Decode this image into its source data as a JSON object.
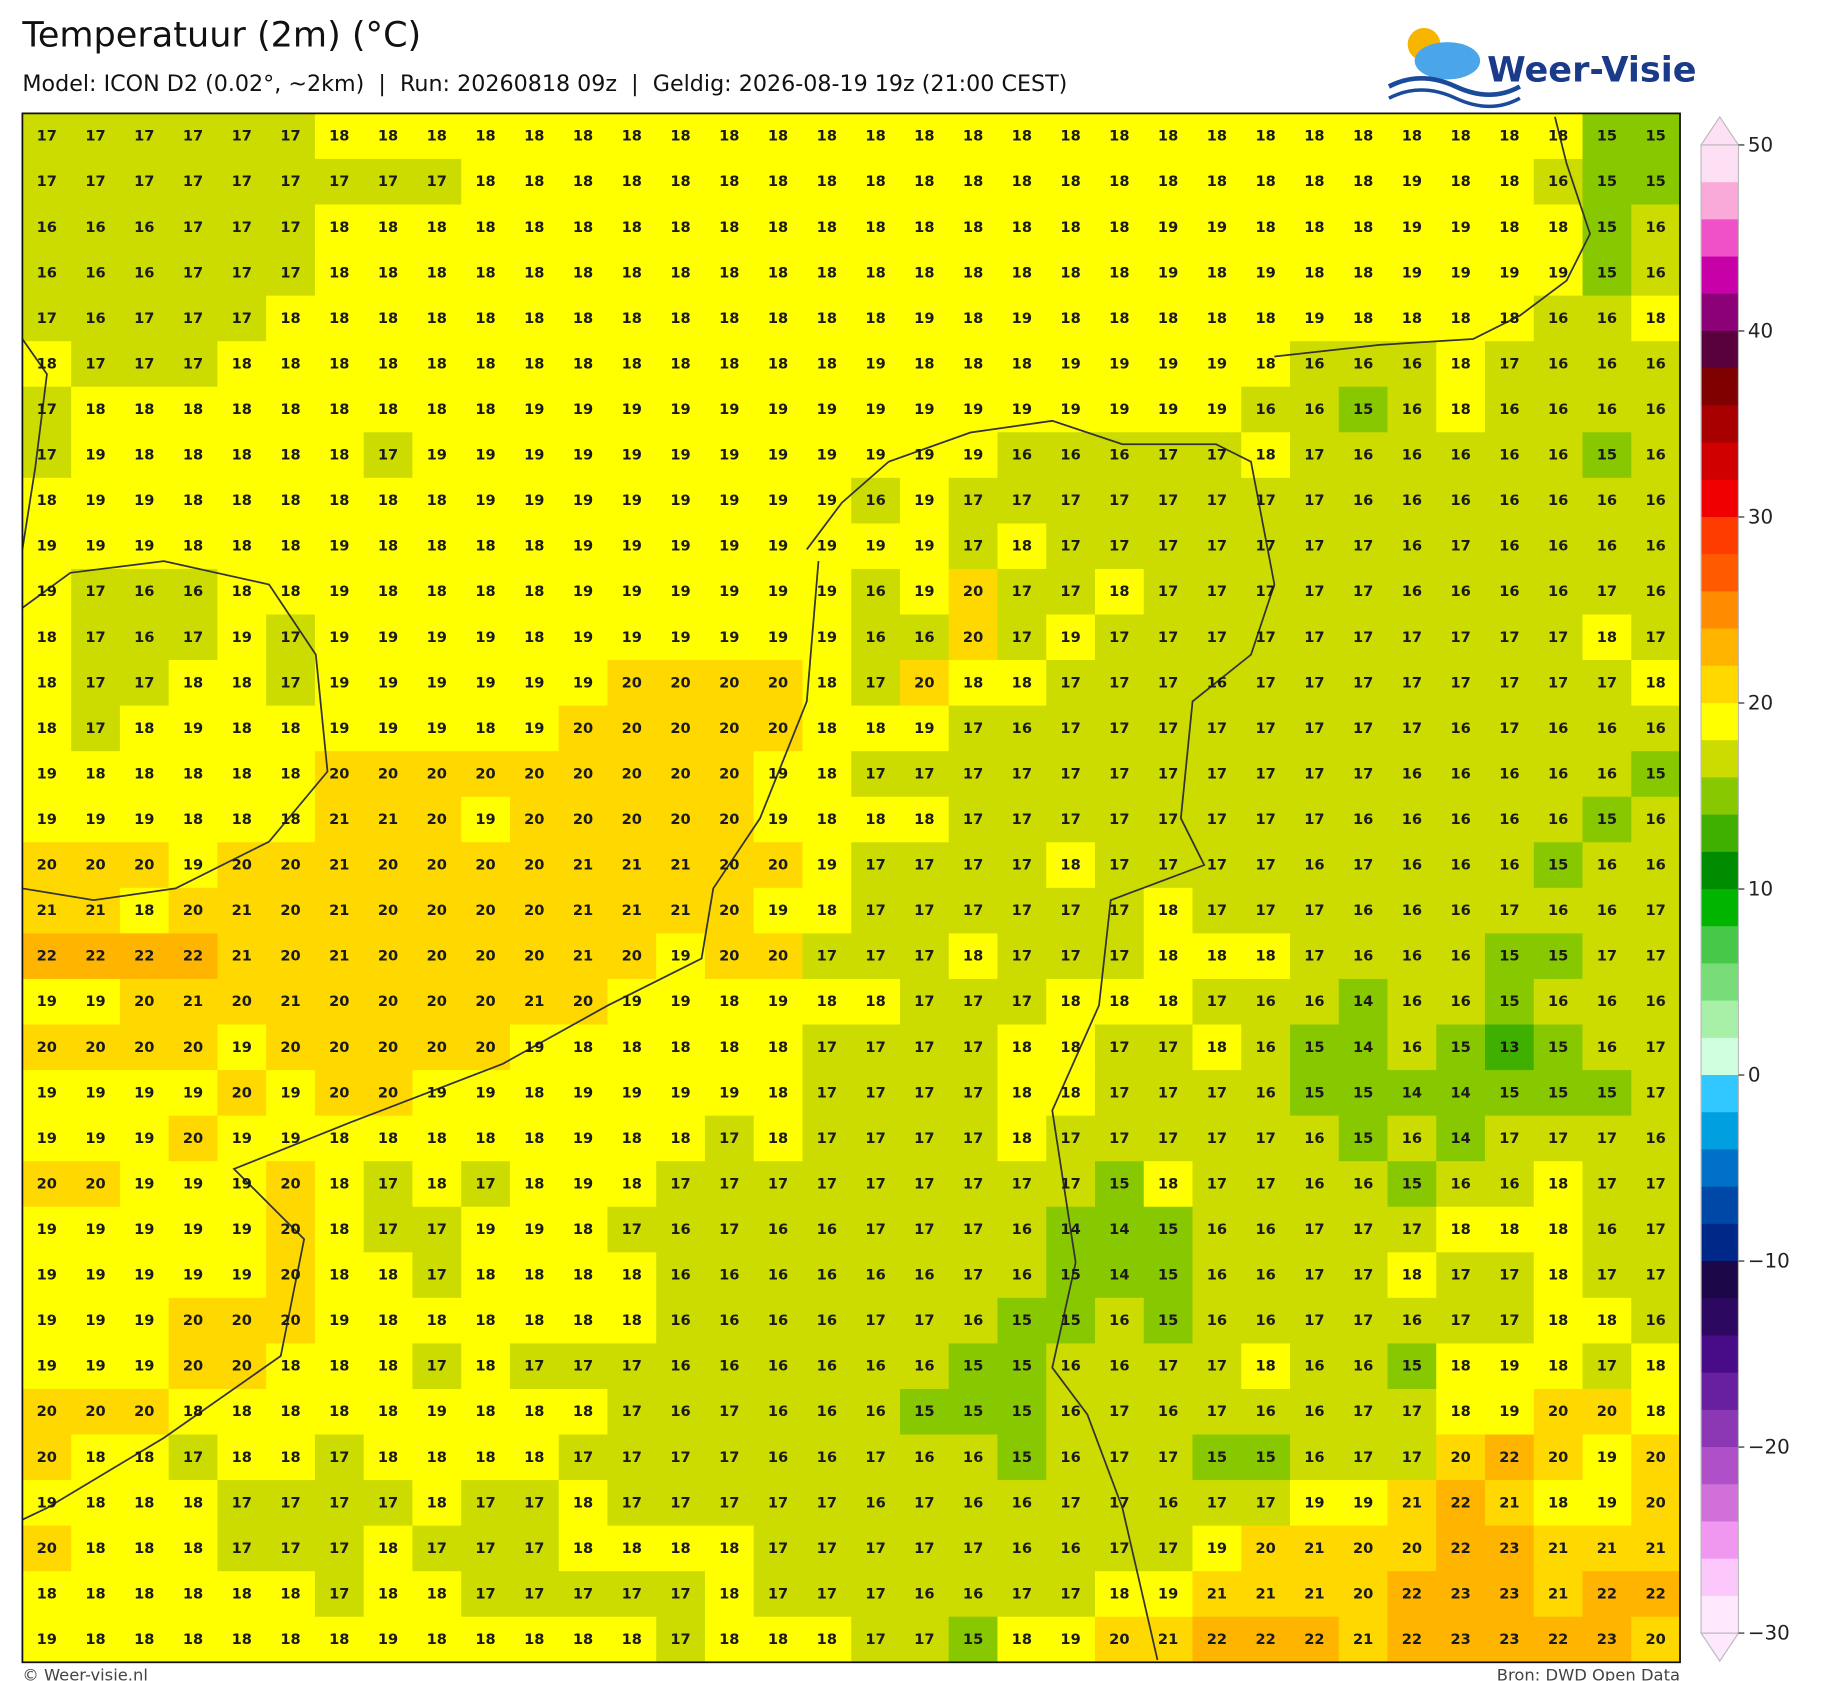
{
  "header": {
    "title": "Temperatuur (2m) (°C)",
    "subtitle": "Model: ICON D2 (0.02°, ~2km)  |  Run: 20260818 09z  |  Geldig: 2026-08-19 19z (21:00 CEST)"
  },
  "logo": {
    "text": "Weer-Visie"
  },
  "map": {
    "rows": [
      [
        17,
        17,
        17,
        17,
        17,
        17,
        18,
        18,
        18,
        18,
        18,
        18,
        18,
        18,
        18,
        18,
        18,
        18,
        18,
        18,
        18,
        18,
        18,
        18,
        18,
        18,
        18,
        18,
        18,
        18,
        18,
        18,
        15,
        15
      ],
      [
        17,
        17,
        17,
        17,
        17,
        17,
        17,
        17,
        17,
        18,
        18,
        18,
        18,
        18,
        18,
        18,
        18,
        18,
        18,
        18,
        18,
        18,
        18,
        18,
        18,
        18,
        18,
        18,
        19,
        18,
        18,
        16,
        15,
        15
      ],
      [
        16,
        16,
        16,
        17,
        17,
        17,
        18,
        18,
        18,
        18,
        18,
        18,
        18,
        18,
        18,
        18,
        18,
        18,
        18,
        18,
        18,
        18,
        18,
        19,
        19,
        18,
        18,
        18,
        19,
        19,
        18,
        18,
        15,
        16
      ],
      [
        16,
        16,
        16,
        17,
        17,
        17,
        18,
        18,
        18,
        18,
        18,
        18,
        18,
        18,
        18,
        18,
        18,
        18,
        18,
        18,
        18,
        18,
        18,
        19,
        18,
        19,
        18,
        18,
        19,
        19,
        19,
        19,
        15,
        16
      ],
      [
        17,
        16,
        17,
        17,
        17,
        18,
        18,
        18,
        18,
        18,
        18,
        18,
        18,
        18,
        18,
        18,
        18,
        18,
        19,
        18,
        19,
        18,
        18,
        18,
        18,
        18,
        19,
        18,
        18,
        18,
        18,
        16,
        16,
        18
      ],
      [
        18,
        17,
        17,
        17,
        18,
        18,
        18,
        18,
        18,
        18,
        18,
        18,
        18,
        18,
        18,
        18,
        18,
        19,
        18,
        18,
        18,
        19,
        19,
        19,
        19,
        18,
        16,
        16,
        16,
        18,
        17,
        16,
        16,
        16
      ],
      [
        17,
        18,
        18,
        18,
        18,
        18,
        18,
        18,
        18,
        18,
        19,
        19,
        19,
        19,
        19,
        19,
        19,
        19,
        19,
        19,
        19,
        19,
        19,
        19,
        19,
        16,
        16,
        15,
        16,
        18,
        16,
        16,
        16,
        16
      ],
      [
        17,
        19,
        18,
        18,
        18,
        18,
        18,
        17,
        19,
        19,
        19,
        19,
        19,
        19,
        19,
        19,
        19,
        19,
        19,
        19,
        16,
        16,
        16,
        17,
        17,
        18,
        17,
        16,
        16,
        16,
        16,
        16,
        15,
        16
      ],
      [
        18,
        19,
        19,
        18,
        18,
        18,
        18,
        18,
        18,
        19,
        19,
        19,
        19,
        19,
        19,
        19,
        19,
        16,
        19,
        17,
        17,
        17,
        17,
        17,
        17,
        17,
        17,
        16,
        16,
        16,
        16,
        16,
        16,
        16
      ],
      [
        19,
        19,
        19,
        18,
        18,
        18,
        19,
        18,
        18,
        18,
        18,
        19,
        19,
        19,
        19,
        19,
        19,
        19,
        19,
        17,
        18,
        17,
        17,
        17,
        17,
        17,
        17,
        17,
        16,
        17,
        16,
        16,
        16,
        16
      ],
      [
        19,
        17,
        16,
        16,
        18,
        18,
        19,
        18,
        18,
        18,
        18,
        19,
        19,
        19,
        19,
        19,
        19,
        16,
        19,
        20,
        17,
        17,
        18,
        17,
        17,
        17,
        17,
        17,
        16,
        16,
        16,
        16,
        17,
        16
      ],
      [
        18,
        17,
        16,
        17,
        19,
        17,
        19,
        19,
        19,
        19,
        18,
        19,
        19,
        19,
        19,
        19,
        19,
        16,
        16,
        20,
        17,
        19,
        17,
        17,
        17,
        17,
        17,
        17,
        17,
        17,
        17,
        17,
        18,
        17
      ],
      [
        18,
        17,
        17,
        18,
        18,
        17,
        19,
        19,
        19,
        19,
        19,
        19,
        20,
        20,
        20,
        20,
        18,
        17,
        20,
        18,
        18,
        17,
        17,
        17,
        16,
        17,
        17,
        17,
        17,
        17,
        17,
        17,
        17,
        18
      ],
      [
        18,
        17,
        18,
        19,
        18,
        18,
        19,
        19,
        19,
        18,
        19,
        20,
        20,
        20,
        20,
        20,
        18,
        18,
        19,
        17,
        16,
        17,
        17,
        17,
        17,
        17,
        17,
        17,
        17,
        16,
        17,
        16,
        16,
        16
      ],
      [
        19,
        18,
        18,
        18,
        18,
        18,
        20,
        20,
        20,
        20,
        20,
        20,
        20,
        20,
        20,
        19,
        18,
        17,
        17,
        17,
        17,
        17,
        17,
        17,
        17,
        17,
        17,
        17,
        16,
        16,
        16,
        16,
        16,
        15
      ],
      [
        19,
        19,
        19,
        18,
        18,
        18,
        21,
        21,
        20,
        19,
        20,
        20,
        20,
        20,
        20,
        19,
        18,
        18,
        18,
        17,
        17,
        17,
        17,
        17,
        17,
        17,
        17,
        16,
        16,
        16,
        16,
        16,
        15,
        16
      ],
      [
        20,
        20,
        20,
        19,
        20,
        20,
        21,
        20,
        20,
        20,
        20,
        21,
        21,
        21,
        20,
        20,
        19,
        17,
        17,
        17,
        17,
        18,
        17,
        17,
        17,
        17,
        16,
        17,
        16,
        16,
        16,
        15,
        16,
        16
      ],
      [
        21,
        21,
        18,
        20,
        21,
        20,
        21,
        20,
        20,
        20,
        20,
        21,
        21,
        21,
        20,
        19,
        18,
        17,
        17,
        17,
        17,
        17,
        17,
        18,
        17,
        17,
        17,
        16,
        16,
        16,
        17,
        16,
        16,
        17
      ],
      [
        22,
        22,
        22,
        22,
        21,
        20,
        21,
        20,
        20,
        20,
        20,
        21,
        20,
        19,
        20,
        20,
        17,
        17,
        17,
        18,
        17,
        17,
        17,
        18,
        18,
        18,
        17,
        16,
        16,
        16,
        15,
        15,
        17,
        17
      ],
      [
        19,
        19,
        20,
        21,
        20,
        21,
        20,
        20,
        20,
        20,
        21,
        20,
        19,
        19,
        18,
        19,
        18,
        18,
        17,
        17,
        17,
        18,
        18,
        18,
        17,
        16,
        16,
        14,
        16,
        16,
        15,
        16,
        16,
        16
      ],
      [
        20,
        20,
        20,
        20,
        19,
        20,
        20,
        20,
        20,
        20,
        19,
        18,
        18,
        18,
        18,
        18,
        17,
        17,
        17,
        17,
        18,
        18,
        17,
        17,
        18,
        16,
        15,
        14,
        16,
        15,
        13,
        15,
        16,
        17
      ],
      [
        19,
        19,
        19,
        19,
        20,
        19,
        20,
        20,
        19,
        19,
        18,
        19,
        19,
        19,
        19,
        18,
        17,
        17,
        17,
        17,
        18,
        18,
        17,
        17,
        17,
        16,
        15,
        15,
        14,
        14,
        15,
        15,
        15,
        17
      ],
      [
        19,
        19,
        19,
        20,
        19,
        19,
        18,
        18,
        18,
        18,
        18,
        19,
        18,
        18,
        17,
        18,
        17,
        17,
        17,
        17,
        18,
        17,
        17,
        17,
        17,
        17,
        16,
        15,
        16,
        14,
        17,
        17,
        17,
        16
      ],
      [
        20,
        20,
        19,
        19,
        19,
        20,
        18,
        17,
        18,
        17,
        18,
        19,
        18,
        17,
        17,
        17,
        17,
        17,
        17,
        17,
        17,
        17,
        15,
        18,
        17,
        17,
        16,
        16,
        15,
        16,
        16,
        18,
        17,
        17
      ],
      [
        19,
        19,
        19,
        19,
        19,
        20,
        18,
        17,
        17,
        19,
        19,
        18,
        17,
        16,
        17,
        16,
        16,
        17,
        17,
        17,
        16,
        14,
        14,
        15,
        16,
        16,
        17,
        17,
        17,
        18,
        18,
        18,
        16,
        17
      ],
      [
        19,
        19,
        19,
        19,
        19,
        20,
        18,
        18,
        17,
        18,
        18,
        18,
        18,
        16,
        16,
        16,
        16,
        16,
        16,
        17,
        16,
        15,
        14,
        15,
        16,
        16,
        17,
        17,
        18,
        17,
        17,
        18,
        17,
        17
      ],
      [
        19,
        19,
        19,
        20,
        20,
        20,
        19,
        18,
        18,
        18,
        18,
        18,
        18,
        16,
        16,
        16,
        16,
        17,
        17,
        16,
        15,
        15,
        16,
        15,
        16,
        16,
        17,
        17,
        16,
        17,
        17,
        18,
        18,
        16
      ],
      [
        19,
        19,
        19,
        20,
        20,
        18,
        18,
        18,
        17,
        18,
        17,
        17,
        17,
        16,
        16,
        16,
        16,
        16,
        16,
        15,
        15,
        16,
        16,
        17,
        17,
        18,
        16,
        16,
        15,
        18,
        19,
        18,
        17,
        18
      ],
      [
        20,
        20,
        20,
        18,
        18,
        18,
        18,
        18,
        19,
        18,
        18,
        18,
        17,
        16,
        17,
        16,
        16,
        16,
        15,
        15,
        15,
        16,
        17,
        16,
        17,
        16,
        16,
        17,
        17,
        18,
        19,
        20,
        20,
        18
      ],
      [
        20,
        18,
        18,
        17,
        18,
        18,
        17,
        18,
        18,
        18,
        18,
        17,
        17,
        17,
        17,
        16,
        16,
        17,
        16,
        16,
        15,
        16,
        17,
        17,
        15,
        15,
        16,
        17,
        17,
        20,
        22,
        20,
        19,
        20
      ],
      [
        19,
        18,
        18,
        18,
        17,
        17,
        17,
        17,
        18,
        17,
        17,
        18,
        17,
        17,
        17,
        17,
        17,
        16,
        17,
        16,
        16,
        17,
        17,
        16,
        17,
        17,
        19,
        19,
        21,
        22,
        21,
        18,
        19,
        20
      ],
      [
        20,
        18,
        18,
        18,
        17,
        17,
        17,
        18,
        17,
        17,
        17,
        18,
        18,
        18,
        18,
        17,
        17,
        17,
        17,
        17,
        16,
        16,
        17,
        17,
        19,
        20,
        21,
        20,
        20,
        22,
        23,
        21,
        21,
        21
      ],
      [
        18,
        18,
        18,
        18,
        18,
        18,
        17,
        18,
        18,
        17,
        17,
        17,
        17,
        17,
        18,
        17,
        17,
        17,
        16,
        16,
        17,
        17,
        18,
        19,
        21,
        21,
        21,
        20,
        22,
        23,
        23,
        21,
        22,
        22
      ],
      [
        19,
        18,
        18,
        18,
        18,
        18,
        18,
        19,
        18,
        18,
        18,
        18,
        18,
        17,
        18,
        18,
        18,
        17,
        17,
        15,
        18,
        19,
        20,
        21,
        22,
        22,
        22,
        21,
        22,
        23,
        23,
        22,
        23,
        20
      ]
    ]
  },
  "colorbar": {
    "range": [
      -30,
      50
    ],
    "colors": [
      "#fde0f4",
      "#f9aad8",
      "#f050c8",
      "#c800a8",
      "#8c0078",
      "#58003c",
      "#800000",
      "#a80000",
      "#d00000",
      "#f00000",
      "#ff3c00",
      "#ff5a00",
      "#ff8c00",
      "#ffb400",
      "#ffd800",
      "#ffff00",
      "#ccdc00",
      "#88c800",
      "#40b000",
      "#008c00",
      "#00b400",
      "#48c848",
      "#78dc78",
      "#a8f0a8",
      "#d0ffe0",
      "#30c8ff",
      "#00a0e0",
      "#0070c8",
      "#0048a8",
      "#002888",
      "#1c0848",
      "#2c0860",
      "#480c88",
      "#6820a0",
      "#8c38b4",
      "#b050c8",
      "#d070d8",
      "#f098f0",
      "#fcc8fc",
      "#fde8fd"
    ],
    "ticks": [
      50,
      40,
      30,
      20,
      10,
      0,
      {
        "value": -10,
        "label": "−10"
      },
      {
        "value": -20,
        "label": "−20"
      },
      {
        "value": -30,
        "label": "−30"
      }
    ]
  },
  "footer": {
    "left": "© Weer-visie.nl",
    "right": "Bron: DWD Open Data"
  }
}
